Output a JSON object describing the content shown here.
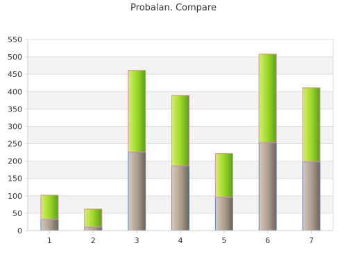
{
  "chart_data": {
    "type": "bar",
    "stacked": true,
    "title": "Probalan. Compare",
    "xlabel": "",
    "ylabel": "",
    "categories": [
      "1",
      "2",
      "3",
      "4",
      "5",
      "6",
      "7"
    ],
    "series": [
      {
        "values": [
          32,
          10,
          226,
          186,
          96,
          253,
          198
        ],
        "color": "#a89c8c"
      },
      {
        "values": [
          70,
          52,
          235,
          203,
          126,
          255,
          213
        ],
        "color": "#9ed82a"
      }
    ],
    "ylim": [
      0,
      550
    ],
    "yticks": [
      0,
      50,
      100,
      150,
      200,
      250,
      300,
      350,
      400,
      450,
      500,
      550
    ],
    "grid": true,
    "legend": "none",
    "colors": {
      "band": "#f3f3f3",
      "grid": "#dddddd",
      "base_edge": "#5b86c8",
      "top_edge": "#d98bb8"
    }
  }
}
